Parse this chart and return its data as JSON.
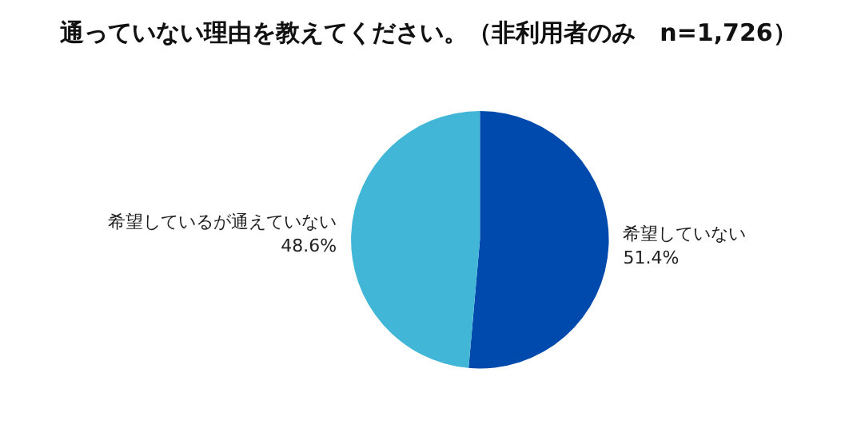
{
  "chart_data": {
    "type": "pie",
    "title": "通っていない理由を教えてください。（非利用者のみ　n=1,726）",
    "categories": [
      "希望していない",
      "希望しているが通えていない"
    ],
    "values": [
      51.4,
      48.6
    ],
    "value_labels": [
      "51.4%",
      "48.6%"
    ],
    "colors": [
      "#004aad",
      "#42b6d6"
    ],
    "legend": false
  }
}
